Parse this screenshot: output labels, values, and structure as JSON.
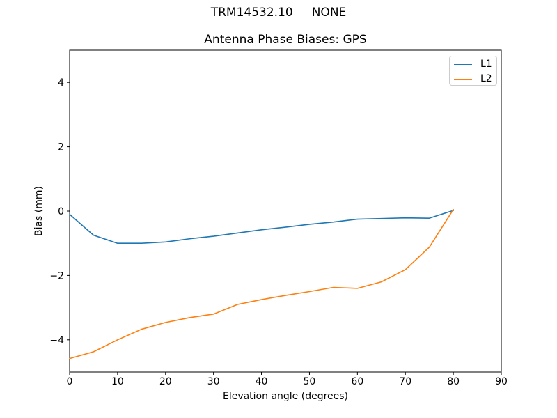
{
  "figure": {
    "background": "#ffffff",
    "suptitle": "TRM14532.10     NONE"
  },
  "chart_data": {
    "type": "line",
    "title": "Antenna Phase Biases: GPS",
    "xlabel": "Elevation angle (degrees)",
    "ylabel": "Bias (mm)",
    "xlim": [
      0,
      90
    ],
    "ylim": [
      -5,
      5
    ],
    "xticks": [
      0,
      10,
      20,
      30,
      40,
      50,
      60,
      70,
      80,
      90
    ],
    "yticks": [
      -4,
      -2,
      0,
      2,
      4
    ],
    "grid": false,
    "legend": {
      "position": "upper right",
      "entries": [
        "L1",
        "L2"
      ]
    },
    "x": [
      0,
      5,
      10,
      15,
      20,
      25,
      30,
      35,
      40,
      45,
      50,
      55,
      60,
      65,
      70,
      75,
      80
    ],
    "series": [
      {
        "name": "L1",
        "color": "#1f77b4",
        "values": [
          -0.1,
          -0.75,
          -1.0,
          -1.0,
          -0.96,
          -0.86,
          -0.78,
          -0.68,
          -0.58,
          -0.5,
          -0.41,
          -0.34,
          -0.25,
          -0.23,
          -0.21,
          -0.22,
          0.02
        ]
      },
      {
        "name": "L2",
        "color": "#ff7f0e",
        "values": [
          -4.58,
          -4.37,
          -4.0,
          -3.67,
          -3.46,
          -3.31,
          -3.2,
          -2.9,
          -2.75,
          -2.62,
          -2.5,
          -2.37,
          -2.4,
          -2.2,
          -1.82,
          -1.12,
          0.05
        ]
      }
    ],
    "spine_color": "#000000",
    "tick_color": "#000000",
    "legend_border_color": "#cccccc"
  }
}
